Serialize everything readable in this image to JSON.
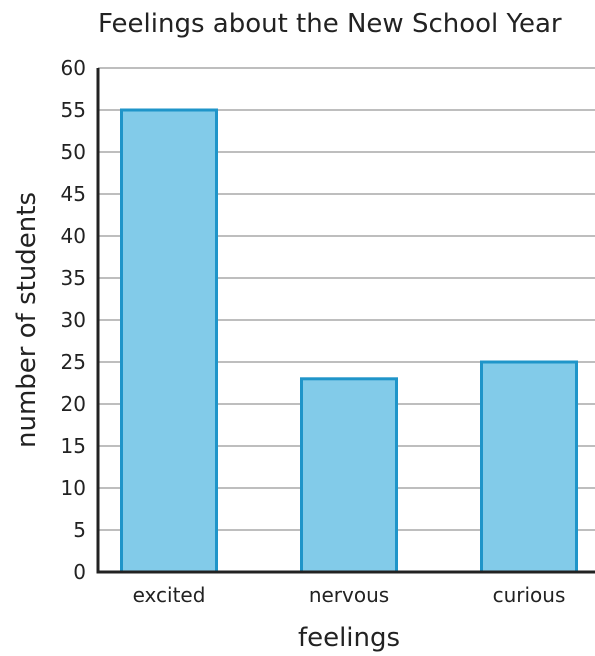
{
  "chart_data": {
    "type": "bar",
    "title": "Feelings about the New School Year",
    "xlabel": "feelings",
    "ylabel": "number of students",
    "categories": [
      "excited",
      "nervous",
      "curious"
    ],
    "values": [
      55,
      23,
      25
    ],
    "ylim": [
      0,
      60
    ],
    "yticks": [
      0,
      5,
      10,
      15,
      20,
      25,
      30,
      35,
      40,
      45,
      50,
      55,
      60
    ],
    "grid": true,
    "colors": {
      "bar_fill": "#82cbe9",
      "bar_stroke": "#1f95c9",
      "grid": "#a9a9a9",
      "axis": "#222222",
      "text": "#222222"
    }
  }
}
